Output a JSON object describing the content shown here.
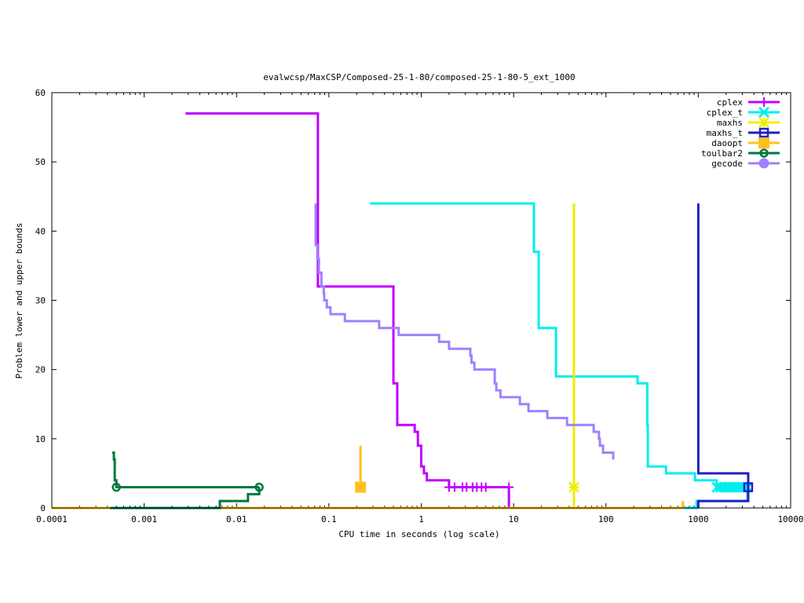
{
  "chart_data": {
    "type": "line",
    "title": "evalwcsp/MaxCSP/Composed-25-1-80/composed-25-1-80-5_ext_1000",
    "xlabel": "CPU time in seconds (log scale)",
    "ylabel": "Problem lower and upper bounds",
    "xscale": "log",
    "xlim": [
      0.0001,
      10000
    ],
    "ylim": [
      0,
      60
    ],
    "xticks": [
      0.0001,
      0.001,
      0.01,
      0.1,
      1,
      10,
      100,
      1000,
      10000
    ],
    "xtick_labels": [
      "0.0001",
      "0.001",
      "0.01",
      "0.1",
      "1",
      "10",
      "100",
      "1000",
      "10000"
    ],
    "yticks": [
      0,
      10,
      20,
      30,
      40,
      50,
      60
    ],
    "ytick_labels": [
      "0",
      "10",
      "20",
      "30",
      "40",
      "50",
      "60"
    ],
    "legend_position": "top-right",
    "series": [
      {
        "name": "cplex",
        "color": "#c000ff",
        "marker": "plus",
        "segments": [
          [
            [
              0.0028,
              57
            ],
            [
              0.076,
              32
            ],
            [
              0.5,
              18
            ],
            [
              0.55,
              12
            ],
            [
              0.85,
              11
            ],
            [
              0.92,
              9
            ],
            [
              1.0,
              6
            ],
            [
              1.07,
              5
            ],
            [
              1.15,
              4
            ],
            [
              2.0,
              3
            ],
            [
              8.9,
              3
            ],
            [
              8.9,
              0
            ]
          ]
        ],
        "markers": [
          [
            2.0,
            3
          ],
          [
            2.3,
            3
          ],
          [
            2.8,
            3
          ],
          [
            3.1,
            3
          ],
          [
            3.6,
            3
          ],
          [
            4.0,
            3
          ],
          [
            4.5,
            3
          ],
          [
            5.0,
            3
          ],
          [
            8.9,
            3
          ]
        ]
      },
      {
        "name": "cplex_t",
        "color": "#00eeee",
        "marker": "cross",
        "segments": [
          [
            [
              0.28,
              44
            ],
            [
              16.6,
              37
            ],
            [
              18.7,
              26
            ],
            [
              28.8,
              19
            ],
            [
              220,
              18
            ],
            [
              280,
              12
            ],
            [
              284,
              6
            ],
            [
              447,
              5
            ],
            [
              920,
              4
            ],
            [
              1580,
              3
            ],
            [
              3400,
              3
            ]
          ],
          [
            [
              680,
              0
            ],
            [
              960,
              0
            ],
            [
              960,
              1
            ],
            [
              3400,
              1
            ],
            [
              3400,
              3
            ]
          ]
        ],
        "markers": [
          [
            1600,
            3
          ],
          [
            1750,
            3
          ],
          [
            1900,
            3
          ],
          [
            2050,
            3
          ],
          [
            2200,
            3
          ],
          [
            2400,
            3
          ],
          [
            2600,
            3
          ],
          [
            2800,
            3
          ],
          [
            3000,
            3
          ],
          [
            3200,
            3
          ],
          [
            3400,
            3
          ]
        ]
      },
      {
        "name": "maxhs",
        "color": "#eeee00",
        "marker": "asterisk",
        "segments": [
          [
            [
              45,
              0
            ],
            [
              45,
              44
            ]
          ]
        ],
        "markers": [
          [
            45,
            3
          ]
        ]
      },
      {
        "name": "maxhs_t",
        "color": "#2020c0",
        "marker": "box",
        "segments": [
          [
            [
              1000,
              44
            ],
            [
              1000,
              5
            ],
            [
              3470,
              5
            ],
            [
              3470,
              3
            ]
          ],
          [
            [
              1000,
              0
            ],
            [
              1000,
              1
            ],
            [
              3470,
              1
            ],
            [
              3470,
              3
            ]
          ]
        ],
        "markers": [
          [
            3470,
            3
          ]
        ]
      },
      {
        "name": "daoopt",
        "color": "#ffc020",
        "marker": "filled-box",
        "segments": [
          [
            [
              0.0001,
              0
            ],
            [
              680,
              0
            ],
            [
              680,
              1
            ]
          ],
          [
            [
              0.22,
              3
            ],
            [
              0.22,
              9
            ]
          ]
        ],
        "markers": [
          [
            0.22,
            3
          ]
        ]
      },
      {
        "name": "toulbar2",
        "color": "#007840",
        "marker": "circle",
        "segments": [
          [
            [
              0.00045,
              8
            ],
            [
              0.00047,
              7
            ],
            [
              0.00048,
              4
            ],
            [
              0.0005,
              3
            ],
            [
              0.0176,
              3
            ]
          ],
          [
            [
              0.00043,
              0
            ],
            [
              0.0066,
              0
            ],
            [
              0.0066,
              1
            ],
            [
              0.0133,
              1
            ],
            [
              0.0133,
              2
            ],
            [
              0.0176,
              2
            ],
            [
              0.0176,
              3
            ]
          ]
        ],
        "markers": [
          [
            0.0005,
            3
          ],
          [
            0.0176,
            3
          ]
        ]
      },
      {
        "name": "gecode",
        "color": "#a080ff",
        "marker": "filled-circle",
        "segments": [
          [
            [
              0.072,
              44
            ],
            [
              0.072,
              38
            ],
            [
              0.075,
              36
            ],
            [
              0.078,
              34
            ],
            [
              0.083,
              32
            ],
            [
              0.088,
              31
            ],
            [
              0.089,
              30
            ],
            [
              0.095,
              29
            ],
            [
              0.104,
              28
            ],
            [
              0.149,
              27
            ],
            [
              0.35,
              26
            ],
            [
              0.57,
              25
            ],
            [
              1.56,
              24
            ],
            [
              2.0,
              23
            ],
            [
              3.4,
              22
            ],
            [
              3.5,
              21
            ],
            [
              3.76,
              20
            ],
            [
              6.25,
              18
            ],
            [
              6.5,
              17
            ],
            [
              7.2,
              16
            ],
            [
              11.7,
              15
            ],
            [
              14.5,
              14
            ],
            [
              23.2,
              13
            ],
            [
              37.9,
              12
            ],
            [
              73.6,
              11
            ],
            [
              84,
              10
            ],
            [
              86,
              9
            ],
            [
              93,
              8
            ],
            [
              120,
              8
            ],
            [
              120,
              7
            ]
          ]
        ],
        "markers": []
      }
    ]
  }
}
